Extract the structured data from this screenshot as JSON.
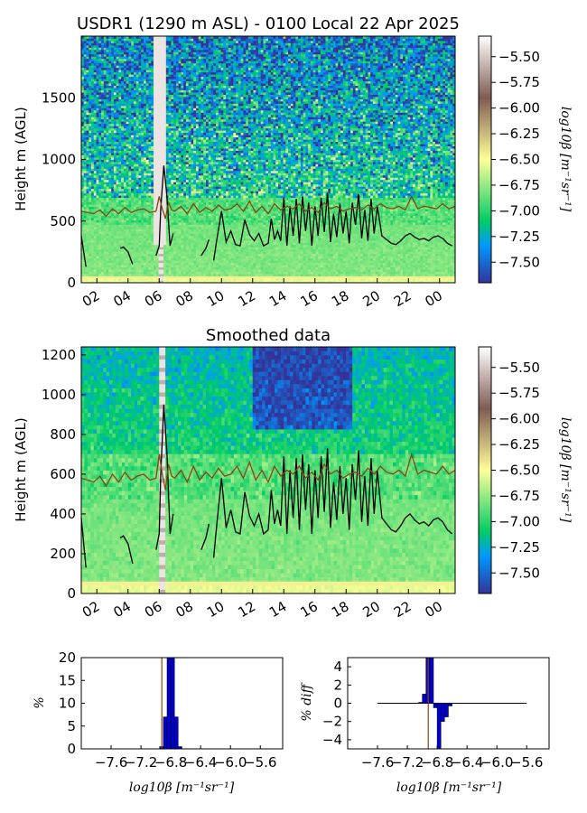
{
  "top_panel": {
    "title": "USDR1 (1290 m ASL) - 0100 Local 22 Apr 2025",
    "ylabel": "Height m (AGL)"
  },
  "smoothed_panel": {
    "title": "Smoothed data",
    "ylabel": "Height m (AGL)"
  },
  "hist_panel": {
    "ylabel": "%",
    "xlabel": "log10β [m⁻¹sr⁻¹]"
  },
  "diff_panel": {
    "ylabel": "% diff",
    "xlabel": "log10β [m⁻¹sr⁻¹]"
  },
  "colorbar": {
    "label": "log10β [m⁻¹sr⁻¹]",
    "ticks": [
      "-5.50",
      "-5.75",
      "-6.00",
      "-6.25",
      "-6.50",
      "-6.75",
      "-7.00",
      "-7.25",
      "-7.50"
    ],
    "vmin": -7.7,
    "vmax": -5.3,
    "colormap": "terrain",
    "colors": [
      "#333399",
      "#0098ff",
      "#00cc66",
      "#ffff99",
      "#805c54",
      "#ffffff"
    ]
  },
  "colors": {
    "black_line": "#000000",
    "brown_line": "#8b4513",
    "hist_bar": "#0000cc"
  },
  "chart_data": [
    {
      "type": "heatmap",
      "title": "USDR1 (1290 m ASL) - 0100 Local 22 Apr 2025",
      "ylabel": "Height m (AGL)",
      "xlabel": "",
      "x_ticks": [
        "02",
        "04",
        "06",
        "08",
        "10",
        "12",
        "14",
        "16",
        "18",
        "20",
        "22",
        "00"
      ],
      "x_tick_hours": [
        2,
        4,
        6,
        8,
        10,
        12,
        14,
        16,
        18,
        20,
        22,
        24
      ],
      "xlim": [
        1,
        25
      ],
      "y_ticks": [
        "0",
        "500",
        "1000",
        "1500"
      ],
      "y_tick_values": [
        0,
        500,
        1000,
        1500
      ],
      "ylim": [
        0,
        2000
      ],
      "series": [
        {
          "name": "",
          "color": "#000000",
          "x": [
            1.0,
            1.3,
            null,
            3.5,
            3.7,
            4.0,
            4.3,
            null,
            5.8,
            6.0,
            6.1,
            6.3,
            6.5,
            6.7,
            6.9,
            null,
            8.7,
            9.0,
            9.2,
            null,
            9.5,
            9.7,
            10.0,
            10.3,
            10.6,
            10.9,
            11.2,
            11.5,
            11.8,
            12.1,
            12.4,
            12.7,
            13.0,
            13.2,
            13.4,
            13.6,
            13.8,
            14.0,
            14.2,
            14.4,
            14.6,
            14.8,
            15.0,
            15.2,
            15.4,
            15.6,
            15.8,
            16.0,
            16.2,
            16.4,
            16.6,
            16.8,
            17.0,
            17.2,
            17.4,
            17.6,
            17.8,
            18.0,
            18.2,
            18.4,
            18.6,
            18.8,
            19.0,
            19.2,
            19.4,
            19.6,
            19.8,
            20.0,
            20.3,
            20.6,
            20.9,
            21.2,
            21.5,
            21.8,
            22.1,
            22.4,
            22.7,
            23.0,
            23.3,
            23.6,
            23.9,
            24.2,
            24.5,
            24.8
          ],
          "y": [
            380,
            130,
            null,
            280,
            290,
            250,
            150,
            null,
            220,
            300,
            600,
            950,
            700,
            300,
            400,
            null,
            220,
            280,
            350,
            null,
            180,
            350,
            580,
            330,
            420,
            310,
            300,
            510,
            390,
            340,
            400,
            300,
            320,
            520,
            350,
            420,
            340,
            690,
            300,
            620,
            380,
            680,
            320,
            700,
            420,
            650,
            300,
            620,
            380,
            690,
            410,
            730,
            330,
            560,
            370,
            640,
            400,
            580,
            320,
            650,
            470,
            720,
            360,
            590,
            340,
            680,
            400,
            620,
            380,
            350,
            320,
            310,
            340,
            380,
            400,
            370,
            350,
            360,
            340,
            370,
            380,
            360,
            320,
            300
          ]
        },
        {
          "name": "",
          "color": "#8b4513",
          "x": [
            1.0,
            1.4,
            1.8,
            2.2,
            2.6,
            3.0,
            3.4,
            3.8,
            4.2,
            4.6,
            5.0,
            5.4,
            5.8,
            6.0,
            6.2,
            6.4,
            6.6,
            6.8,
            7.0,
            7.4,
            7.8,
            8.2,
            8.6,
            9.0,
            9.4,
            9.8,
            10.2,
            10.6,
            11.0,
            11.4,
            11.8,
            12.2,
            12.6,
            13.0,
            13.4,
            13.8,
            14.2,
            14.6,
            15.0,
            15.4,
            15.8,
            16.2,
            16.6,
            17.0,
            17.4,
            17.8,
            18.2,
            18.6,
            19.0,
            19.4,
            19.8,
            20.2,
            20.6,
            21.0,
            21.4,
            21.8,
            22.2,
            22.6,
            23.0,
            23.4,
            23.8,
            24.2,
            24.6,
            25.0
          ],
          "y": [
            580,
            570,
            560,
            590,
            540,
            600,
            560,
            610,
            570,
            590,
            600,
            570,
            580,
            700,
            600,
            520,
            650,
            590,
            580,
            620,
            560,
            640,
            570,
            610,
            580,
            630,
            590,
            600,
            640,
            580,
            660,
            570,
            620,
            560,
            640,
            590,
            620,
            600,
            640,
            580,
            610,
            570,
            650,
            600,
            620,
            580,
            600,
            610,
            590,
            630,
            600,
            640,
            610,
            600,
            620,
            590,
            700,
            600,
            620,
            610,
            600,
            640,
            600,
            620
          ]
        }
      ]
    },
    {
      "type": "heatmap",
      "title": "Smoothed data",
      "ylabel": "Height m (AGL)",
      "xlabel": "",
      "x_ticks": [
        "02",
        "04",
        "06",
        "08",
        "10",
        "12",
        "14",
        "16",
        "18",
        "20",
        "22",
        "00"
      ],
      "x_tick_hours": [
        2,
        4,
        6,
        8,
        10,
        12,
        14,
        16,
        18,
        20,
        22,
        24
      ],
      "xlim": [
        1,
        25
      ],
      "y_ticks": [
        "0",
        "200",
        "400",
        "600",
        "800",
        "1000",
        "1200"
      ],
      "y_tick_values": [
        0,
        200,
        400,
        600,
        800,
        1000,
        1200
      ],
      "ylim": [
        0,
        1240
      ],
      "series": [
        {
          "name": "",
          "color": "#000000",
          "x": [
            1.0,
            1.3,
            null,
            3.5,
            3.7,
            4.0,
            4.3,
            null,
            5.8,
            6.0,
            6.1,
            6.3,
            6.5,
            6.7,
            6.9,
            null,
            8.7,
            9.0,
            9.2,
            null,
            9.5,
            9.7,
            10.0,
            10.3,
            10.6,
            10.9,
            11.2,
            11.5,
            11.8,
            12.1,
            12.4,
            12.7,
            13.0,
            13.2,
            13.4,
            13.6,
            13.8,
            14.0,
            14.2,
            14.4,
            14.6,
            14.8,
            15.0,
            15.2,
            15.4,
            15.6,
            15.8,
            16.0,
            16.2,
            16.4,
            16.6,
            16.8,
            17.0,
            17.2,
            17.4,
            17.6,
            17.8,
            18.0,
            18.2,
            18.4,
            18.6,
            18.8,
            19.0,
            19.2,
            19.4,
            19.6,
            19.8,
            20.0,
            20.3,
            20.6,
            20.9,
            21.2,
            21.5,
            21.8,
            22.1,
            22.4,
            22.7,
            23.0,
            23.3,
            23.6,
            23.9,
            24.2,
            24.5,
            24.8
          ],
          "y": [
            380,
            130,
            null,
            280,
            290,
            250,
            150,
            null,
            220,
            300,
            600,
            950,
            700,
            300,
            400,
            null,
            220,
            280,
            350,
            null,
            180,
            350,
            580,
            330,
            420,
            310,
            300,
            510,
            390,
            340,
            400,
            300,
            320,
            520,
            350,
            420,
            340,
            690,
            300,
            620,
            380,
            680,
            320,
            700,
            420,
            650,
            300,
            620,
            380,
            690,
            410,
            730,
            330,
            560,
            370,
            640,
            400,
            580,
            320,
            650,
            470,
            720,
            360,
            590,
            340,
            680,
            400,
            620,
            380,
            350,
            320,
            310,
            340,
            380,
            400,
            370,
            350,
            360,
            340,
            370,
            380,
            360,
            320,
            300
          ]
        },
        {
          "name": "",
          "color": "#8b4513",
          "x": [
            1.0,
            1.4,
            1.8,
            2.2,
            2.6,
            3.0,
            3.4,
            3.8,
            4.2,
            4.6,
            5.0,
            5.4,
            5.8,
            6.0,
            6.2,
            6.4,
            6.6,
            6.8,
            7.0,
            7.4,
            7.8,
            8.2,
            8.6,
            9.0,
            9.4,
            9.8,
            10.2,
            10.6,
            11.0,
            11.4,
            11.8,
            12.2,
            12.6,
            13.0,
            13.4,
            13.8,
            14.2,
            14.6,
            15.0,
            15.4,
            15.8,
            16.2,
            16.6,
            17.0,
            17.4,
            17.8,
            18.2,
            18.6,
            19.0,
            19.4,
            19.8,
            20.2,
            20.6,
            21.0,
            21.4,
            21.8,
            22.2,
            22.6,
            23.0,
            23.4,
            23.8,
            24.2,
            24.6,
            25.0
          ],
          "y": [
            580,
            570,
            560,
            590,
            540,
            600,
            560,
            610,
            570,
            590,
            600,
            570,
            580,
            700,
            600,
            520,
            650,
            590,
            580,
            620,
            560,
            640,
            570,
            610,
            580,
            630,
            590,
            600,
            640,
            580,
            660,
            570,
            620,
            560,
            640,
            590,
            620,
            600,
            640,
            580,
            610,
            570,
            650,
            600,
            620,
            580,
            600,
            610,
            590,
            630,
            600,
            640,
            610,
            600,
            620,
            590,
            700,
            600,
            620,
            610,
            600,
            640,
            600,
            620
          ]
        }
      ]
    },
    {
      "type": "bar",
      "title": "",
      "xlabel": "log10β [m⁻¹sr⁻¹]",
      "ylabel": "%",
      "x_ticks": [
        "-7.6",
        "-7.2",
        "-6.8",
        "-6.4",
        "-6.0",
        "-5.6"
      ],
      "x_tick_values": [
        -7.6,
        -7.2,
        -6.8,
        -6.4,
        -6.0,
        -5.6
      ],
      "xlim": [
        -8.0,
        -5.3
      ],
      "y_ticks": [
        "0",
        "5",
        "10",
        "15",
        "20"
      ],
      "y_tick_values": [
        0,
        5,
        10,
        15,
        20
      ],
      "ylim": [
        0,
        20
      ],
      "bin_width": 0.05,
      "x": [
        -6.925,
        -6.875,
        -6.825,
        -6.775,
        -6.725,
        -6.675
      ],
      "values": [
        0.5,
        7,
        20,
        20,
        7,
        0.5
      ],
      "vline": {
        "x": -6.92,
        "color": "#8b4513"
      }
    },
    {
      "type": "bar",
      "title": "",
      "xlabel": "log10β [m⁻¹sr⁻¹]",
      "ylabel": "% diff",
      "x_ticks": [
        "-7.6",
        "-7.2",
        "-6.8",
        "-6.4",
        "-6.0",
        "-5.6"
      ],
      "x_tick_values": [
        -7.6,
        -7.2,
        -6.8,
        -6.4,
        -6.0,
        -5.6
      ],
      "xlim": [
        -8.0,
        -5.3
      ],
      "y_ticks": [
        "4",
        "2",
        "0",
        "−2",
        "−4"
      ],
      "y_tick_values": [
        4,
        2,
        0,
        -2,
        -4
      ],
      "ylim": [
        -5,
        5
      ],
      "bin_width": 0.05,
      "x": [
        -7.025,
        -6.975,
        -6.925,
        -6.875,
        -6.825,
        -6.775,
        -6.725,
        -6.675,
        -6.625
      ],
      "values": [
        0.1,
        1.0,
        5.0,
        5.0,
        -0.5,
        -5.0,
        -2.0,
        -1.5,
        -0.3
      ],
      "line": {
        "x": [
          -7.6,
          -5.6
        ],
        "y": [
          0,
          0
        ]
      },
      "vline": {
        "x": -6.92,
        "color": "#8b4513"
      }
    }
  ]
}
